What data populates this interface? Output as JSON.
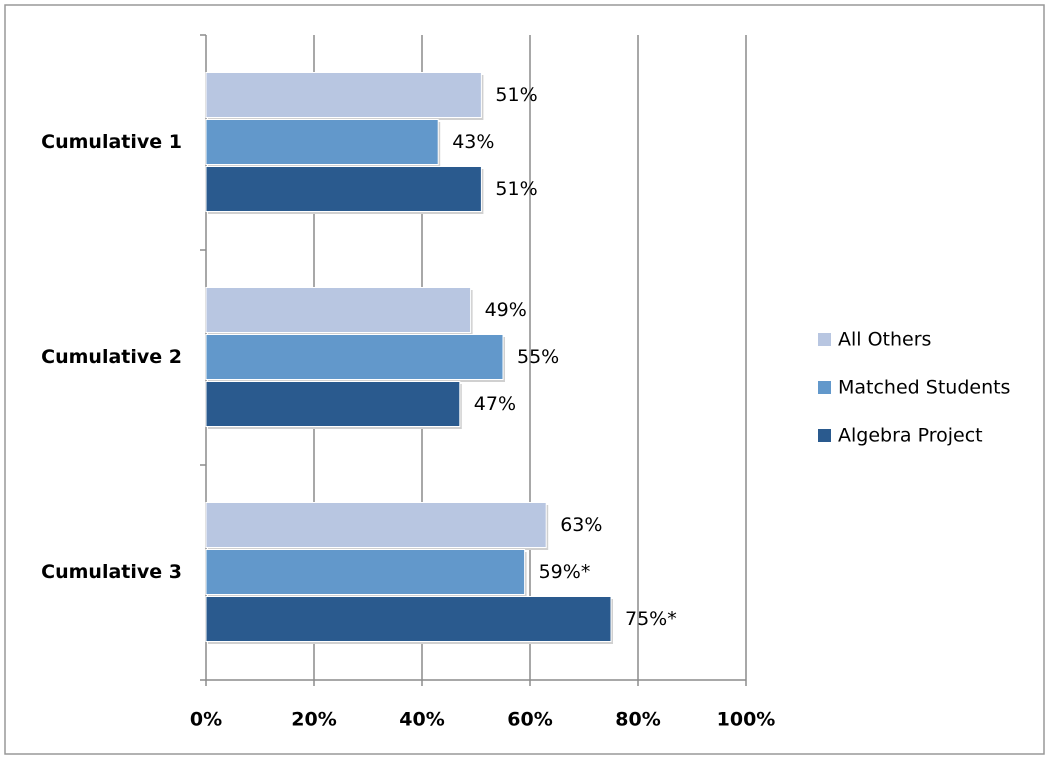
{
  "chart_data": {
    "type": "bar",
    "orientation": "horizontal",
    "categories": [
      "Cumulative 1",
      "Cumulative 2",
      "Cumulative 3"
    ],
    "series": [
      {
        "name": "All Others",
        "color": "#b8c6e1",
        "values": [
          51,
          49,
          63
        ],
        "value_labels": [
          "51%",
          "49%",
          "63%"
        ]
      },
      {
        "name": "Matched Students",
        "color": "#6298cb",
        "values": [
          43,
          55,
          59
        ],
        "value_labels": [
          "43%",
          "55%",
          "59%*"
        ]
      },
      {
        "name": "Algebra Project",
        "color": "#2a5a8e",
        "values": [
          51,
          47,
          75
        ],
        "value_labels": [
          "51%",
          "47%",
          "75%*"
        ]
      }
    ],
    "xlim": [
      0,
      100
    ],
    "xticks": [
      {
        "value": 0,
        "label": "0%"
      },
      {
        "value": 20,
        "label": "20%"
      },
      {
        "value": 40,
        "label": "40%"
      },
      {
        "value": 60,
        "label": "60%"
      },
      {
        "value": 80,
        "label": "80%"
      },
      {
        "value": 100,
        "label": "100%"
      }
    ],
    "grid": true,
    "legend": "right"
  }
}
